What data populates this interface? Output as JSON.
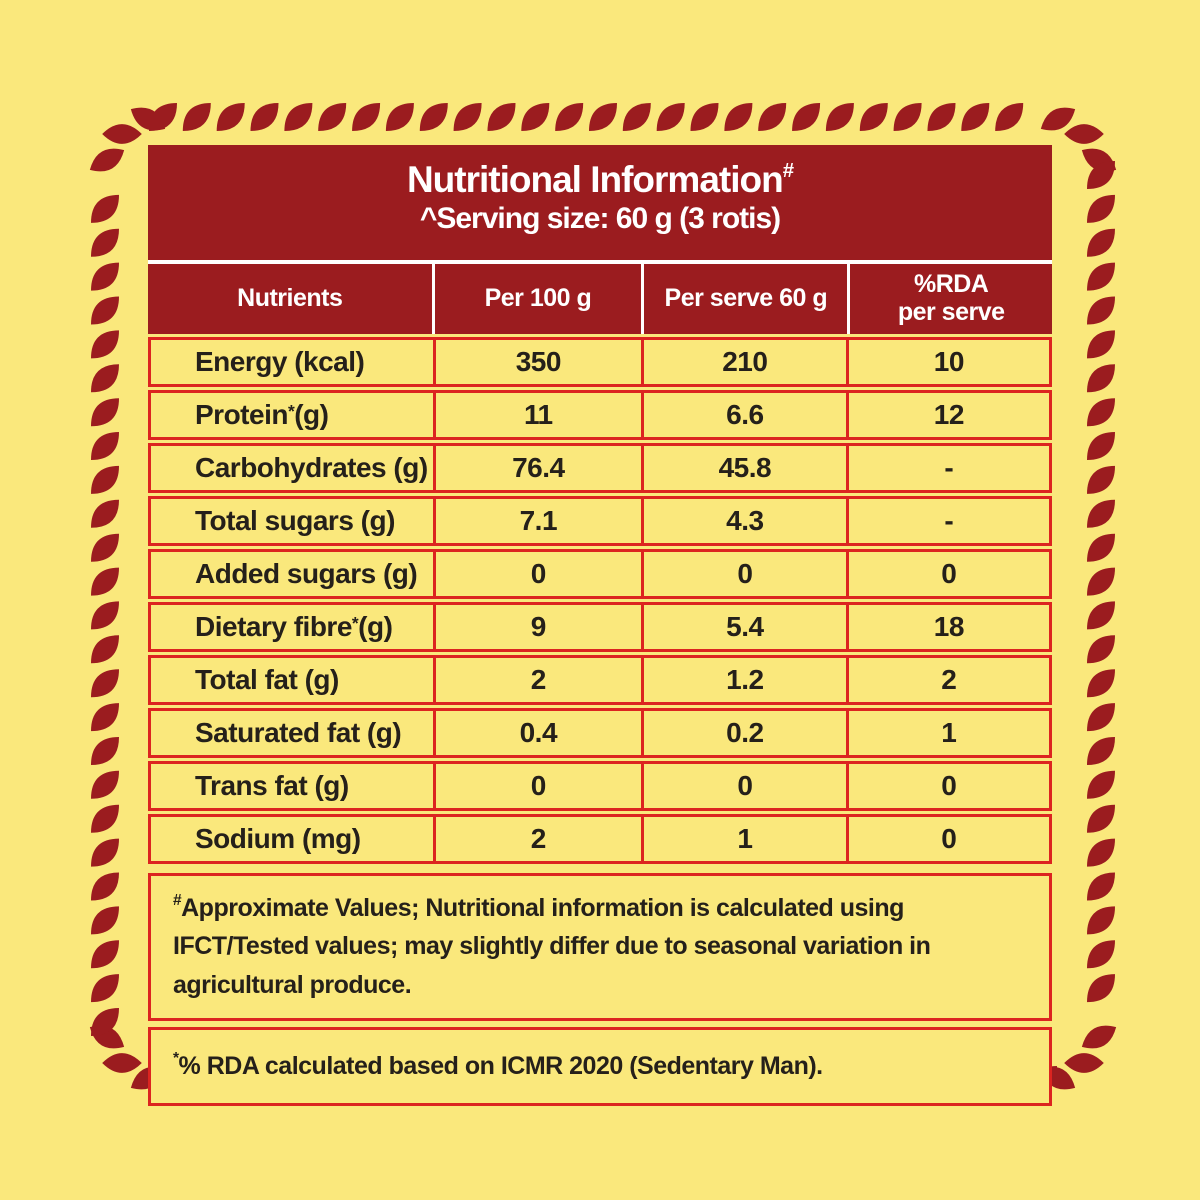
{
  "colors": {
    "background_yellow": "#fae87c",
    "maroon": "#9b1c1f",
    "grid_red": "#dc2420",
    "text_dark": "#25201a",
    "header_text": "#ffffff"
  },
  "decor": {
    "leaf_border_icon": "leaf-petal-icon",
    "leaf_color": "#9b1c1f"
  },
  "header": {
    "title": "Nutritional Information",
    "title_sup": "#",
    "serving": "^Serving size: 60 g (3 rotis)"
  },
  "table": {
    "columns": [
      {
        "line1": "Nutrients"
      },
      {
        "line1": "Per 100 g"
      },
      {
        "line1": "Per serve 60 g"
      },
      {
        "line1": "%RDA",
        "line2": "per serve"
      }
    ],
    "rows": [
      {
        "pre": "Energy (kcal)",
        "sup": "",
        "post": "",
        "per100": "350",
        "serve": "210",
        "rda": "10"
      },
      {
        "pre": "Protein",
        "sup": "*",
        "post": " (g)",
        "per100": "11",
        "serve": "6.6",
        "rda": "12"
      },
      {
        "pre": "Carbohydrates (g)",
        "sup": "",
        "post": "",
        "per100": "76.4",
        "serve": "45.8",
        "rda": "-"
      },
      {
        "pre": "Total sugars (g)",
        "sup": "",
        "post": "",
        "per100": "7.1",
        "serve": "4.3",
        "rda": "-"
      },
      {
        "pre": "Added sugars (g)",
        "sup": "",
        "post": "",
        "per100": "0",
        "serve": "0",
        "rda": "0"
      },
      {
        "pre": "Dietary fibre",
        "sup": "*",
        "post": " (g)",
        "per100": "9",
        "serve": "5.4",
        "rda": "18"
      },
      {
        "pre": "Total fat (g)",
        "sup": "",
        "post": "",
        "per100": "2",
        "serve": "1.2",
        "rda": "2"
      },
      {
        "pre": "Saturated fat (g)",
        "sup": "",
        "post": "",
        "per100": "0.4",
        "serve": "0.2",
        "rda": "1"
      },
      {
        "pre": "Trans fat (g)",
        "sup": "",
        "post": "",
        "per100": "0",
        "serve": "0",
        "rda": "0"
      },
      {
        "pre": "Sodium (mg)",
        "sup": "",
        "post": "",
        "per100": "2",
        "serve": "1",
        "rda": "0"
      }
    ]
  },
  "footnotes": {
    "note1_sup": "#",
    "note1_text": "Approximate Values; Nutritional information is calculated using IFCT/Tested values; may slightly differ due to seasonal variation in agricultural produce.",
    "note2_sup": "*",
    "note2_text": "% RDA calculated based on ICMR 2020 (Sedentary Man)."
  }
}
